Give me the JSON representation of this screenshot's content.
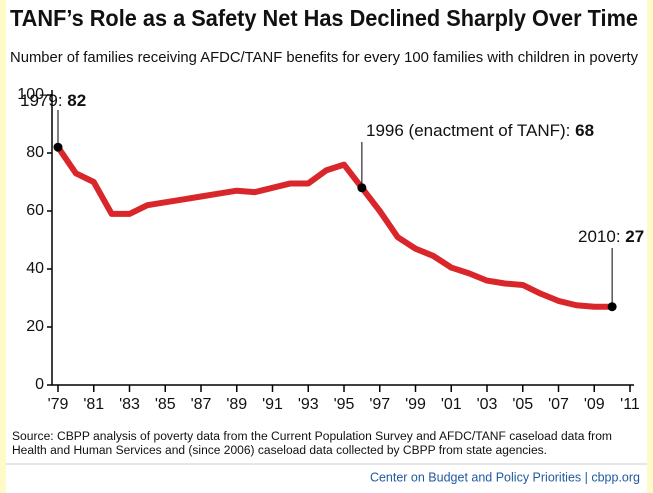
{
  "chart_data": {
    "type": "line",
    "title": "TANF’s Role as a Safety Net Has Declined Sharply Over Time",
    "subtitle": "Number of families receiving AFDC/TANF benefits for every 100 families with children in poverty",
    "x": [
      1979,
      1980,
      1981,
      1982,
      1983,
      1984,
      1985,
      1986,
      1987,
      1988,
      1989,
      1990,
      1991,
      1992,
      1993,
      1994,
      1995,
      1996,
      1997,
      1998,
      1999,
      2000,
      2001,
      2002,
      2003,
      2004,
      2005,
      2006,
      2007,
      2008,
      2009,
      2010
    ],
    "series": [
      {
        "name": "Families receiving AFDC/TANF per 100 families with children in poverty",
        "color": "#d9262b",
        "values": [
          82,
          73,
          70,
          59,
          59,
          62,
          63,
          64,
          65,
          66,
          67,
          66.5,
          68,
          69.5,
          69.5,
          74,
          76,
          68,
          60,
          51,
          47,
          44.5,
          40.5,
          38.5,
          36,
          35,
          34.5,
          31.5,
          29,
          27.5,
          27,
          27
        ]
      }
    ],
    "xlim": [
      1979,
      2011
    ],
    "xticks": [
      {
        "value": 1979,
        "label": "'79"
      },
      {
        "value": 1981,
        "label": "'81"
      },
      {
        "value": 1983,
        "label": "'83"
      },
      {
        "value": 1985,
        "label": "'85"
      },
      {
        "value": 1987,
        "label": "'87"
      },
      {
        "value": 1989,
        "label": "'89"
      },
      {
        "value": 1991,
        "label": "'91"
      },
      {
        "value": 1993,
        "label": "'93"
      },
      {
        "value": 1995,
        "label": "'95"
      },
      {
        "value": 1997,
        "label": "'97"
      },
      {
        "value": 1999,
        "label": "'99"
      },
      {
        "value": 2001,
        "label": "'01"
      },
      {
        "value": 2003,
        "label": "'03"
      },
      {
        "value": 2005,
        "label": "'05"
      },
      {
        "value": 2007,
        "label": "'07"
      },
      {
        "value": 2009,
        "label": "'09"
      },
      {
        "value": 2011,
        "label": "'11"
      }
    ],
    "ylim": [
      0,
      100
    ],
    "yticks": [
      0,
      20,
      40,
      60,
      80,
      100
    ],
    "grid": false,
    "annotations": [
      "1979:",
      "1996 (enactment of TANF):",
      "2010:"
    ],
    "source": [
      "Source: CBPP analysis of poverty data from the Current Population Survey and AFDC/TANF caseload data from",
      "Health and Human Services and (since 2006) caseload data collected by CBPP from state agencies."
    ],
    "credit": "Center on Budget and Policy Priorities | cbpp.org"
  }
}
